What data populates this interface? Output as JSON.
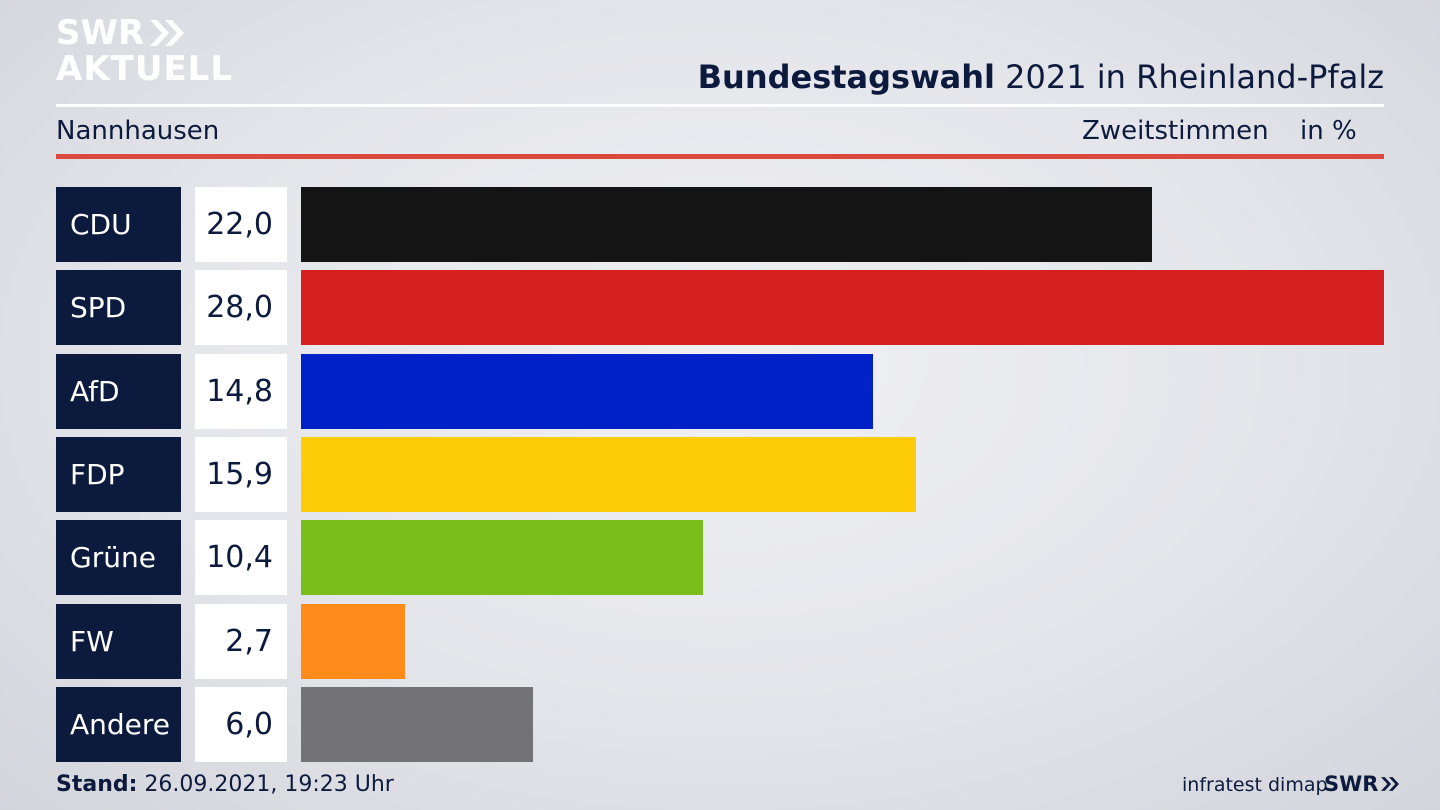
{
  "brand": {
    "line1": "SWR",
    "line2": "AKTUELL",
    "footer_logo": "SWR"
  },
  "header": {
    "title_bold": "Bundestagswahl",
    "title_rest": " 2021 in Rheinland-Pfalz",
    "location": "Nannhausen",
    "vote_type": "Zweitstimmen",
    "unit": "in %"
  },
  "footer": {
    "stand_label": "Stand:",
    "stand_value": " 26.09.2021, 19:23 Uhr",
    "source": "infratest dimap"
  },
  "colors": {
    "accent_red": "#d94a3d",
    "navy": "#0b1a3d"
  },
  "chart_data": {
    "type": "bar",
    "orientation": "horizontal",
    "categories": [
      "CDU",
      "SPD",
      "AfD",
      "FDP",
      "Grüne",
      "FW",
      "Andere"
    ],
    "values": [
      22.0,
      28.0,
      14.8,
      15.9,
      10.4,
      2.7,
      6.0
    ],
    "value_labels": [
      "22,0",
      "28,0",
      "14,8",
      "15,9",
      "10,4",
      "2,7",
      "6,0"
    ],
    "bar_colors": [
      "#141414",
      "#d62020",
      "#0021c7",
      "#ffcc0a",
      "#79be1b",
      "#ff8c1a",
      "#737375"
    ],
    "xlim": [
      0,
      28.0
    ],
    "grid": false,
    "legend": "none"
  }
}
